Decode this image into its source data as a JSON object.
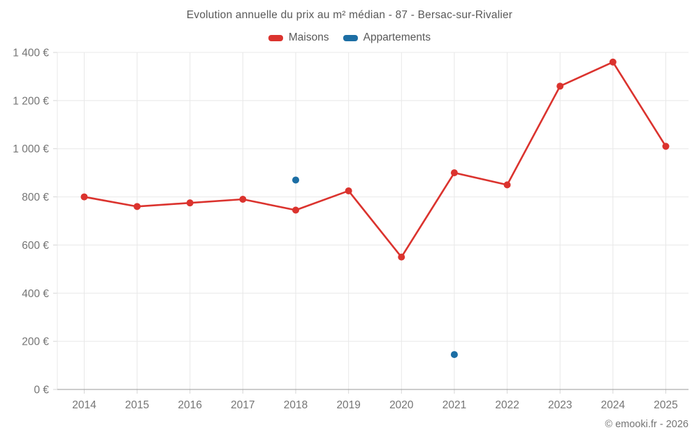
{
  "title": "Evolution annuelle du prix au m² médian - 87 - Bersac-sur-Rivalier",
  "footer": "© emooki.fr - 2026",
  "legend": {
    "items": [
      {
        "label": "Maisons",
        "color": "#db332e"
      },
      {
        "label": "Appartements",
        "color": "#1c6ea4"
      }
    ]
  },
  "chart_data": {
    "type": "line",
    "title": "Evolution annuelle du prix au m² médian - 87 - Bersac-sur-Rivalier",
    "categories": [
      "2014",
      "2015",
      "2016",
      "2017",
      "2018",
      "2019",
      "2020",
      "2021",
      "2022",
      "2023",
      "2024",
      "2025"
    ],
    "series": [
      {
        "name": "Maisons",
        "color": "#db332e",
        "values": [
          800,
          760,
          775,
          790,
          745,
          825,
          550,
          900,
          850,
          1260,
          1360,
          1010
        ]
      },
      {
        "name": "Appartements",
        "color": "#1c6ea4",
        "values": [
          null,
          null,
          null,
          null,
          870,
          null,
          null,
          145,
          null,
          null,
          null,
          null
        ]
      }
    ],
    "xlabel": "",
    "ylabel": "",
    "ylim": [
      0,
      1400
    ],
    "y_ticks": [
      0,
      200,
      400,
      600,
      800,
      1000,
      1200,
      1400
    ],
    "y_tick_labels": [
      "0 €",
      "200 €",
      "400 €",
      "600 €",
      "800 €",
      "1 000 €",
      "1 200 €",
      "1 400 €"
    ],
    "grid": true,
    "legend_position": "top",
    "currency_suffix": " €"
  },
  "colors": {
    "grid": "#e8e8e8",
    "axis": "#9a9a9a",
    "tick": "#d6d6d6",
    "tick_text": "#757575"
  }
}
